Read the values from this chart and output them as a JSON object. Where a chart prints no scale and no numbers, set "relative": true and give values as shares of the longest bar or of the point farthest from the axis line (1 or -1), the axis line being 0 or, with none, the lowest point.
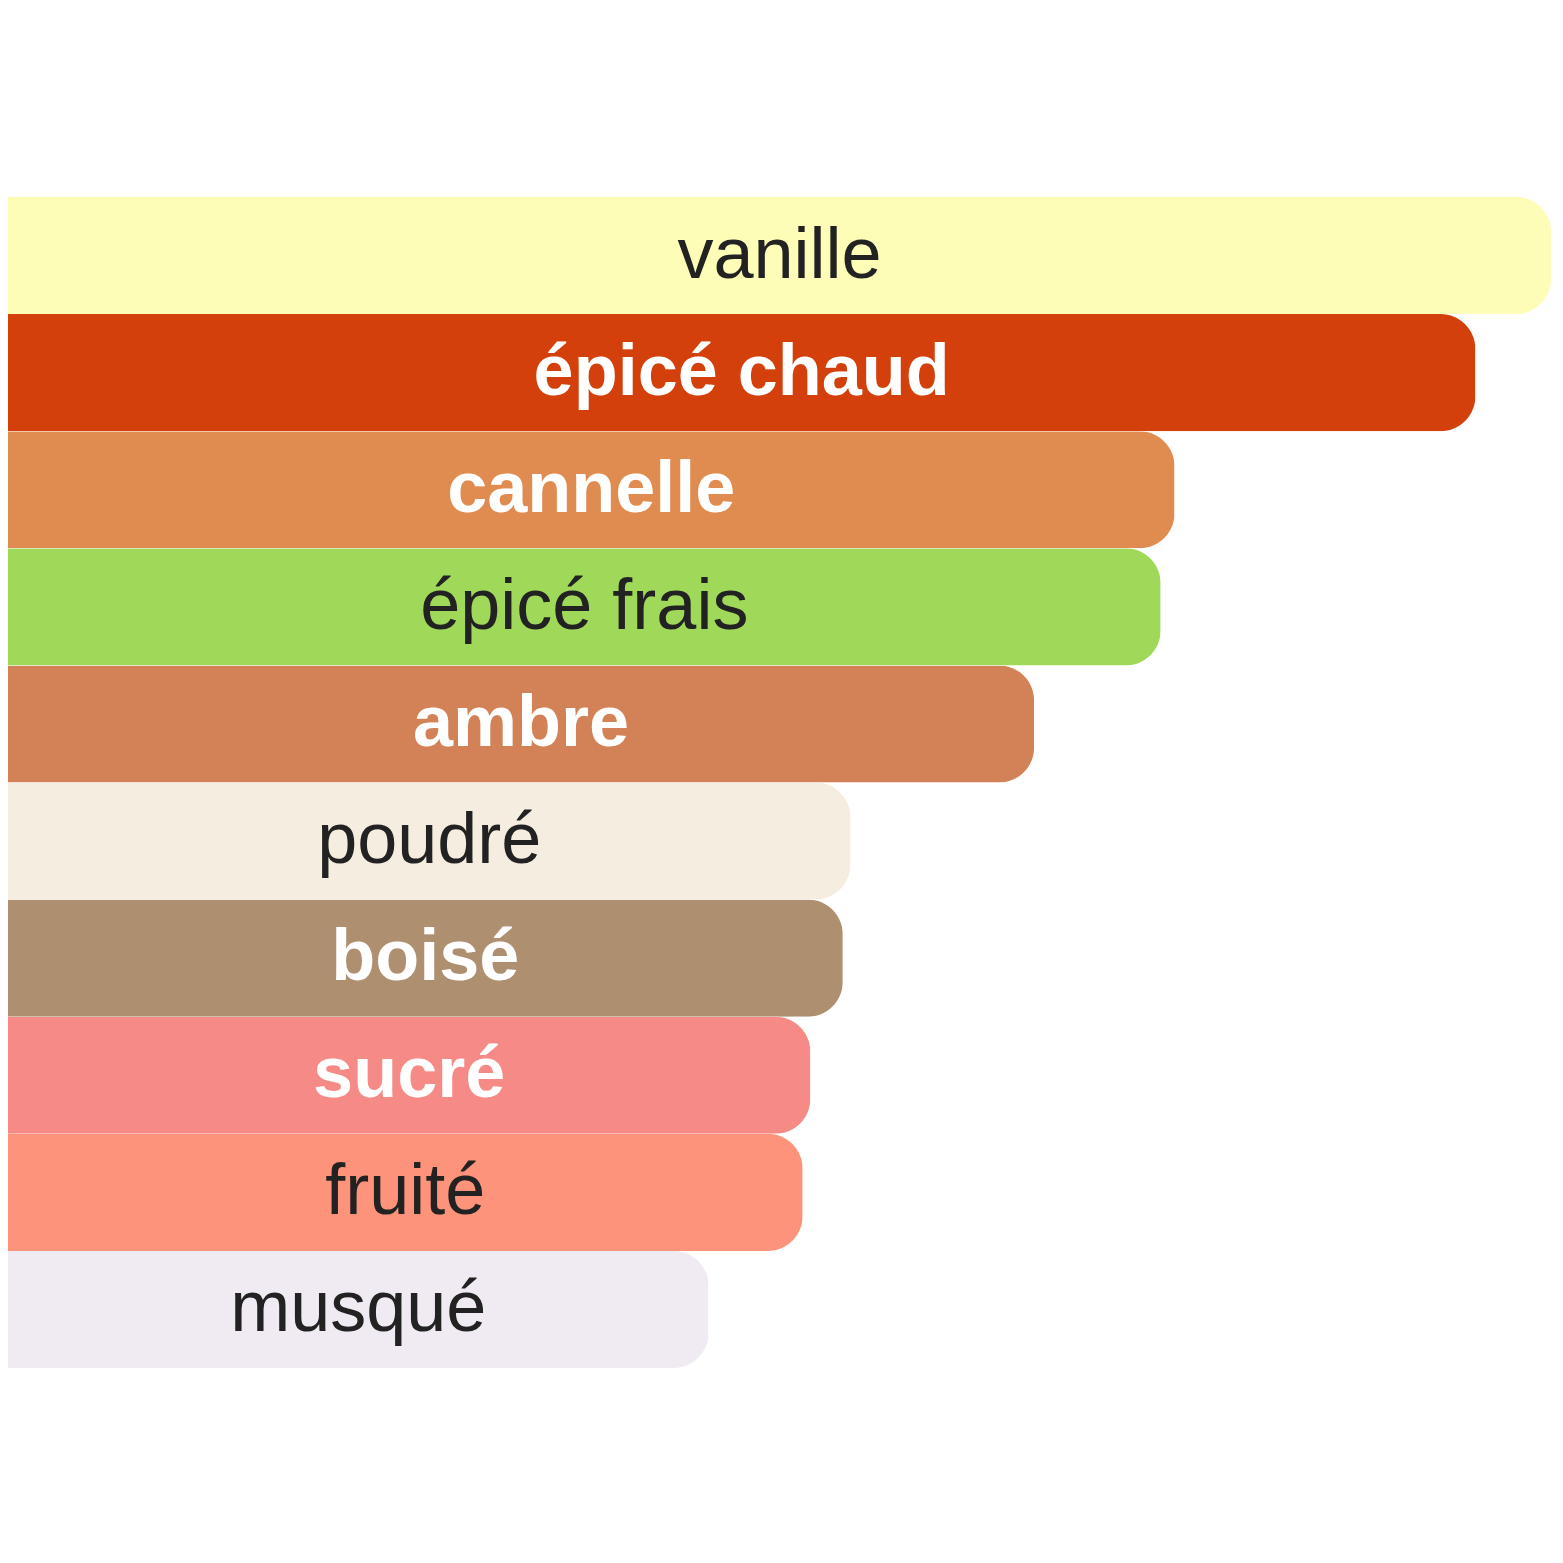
{
  "chart_data": {
    "type": "bar",
    "orientation": "horizontal",
    "relative": true,
    "tick_labels": "y",
    "categories": [
      "vanille",
      "épicé chaud",
      "cannelle",
      "épicé frais",
      "ambre",
      "poudré",
      "boisé",
      "sucré",
      "fruité",
      "musqué"
    ],
    "values": [
      1,
      0.951,
      0.756,
      0.747,
      0.665,
      0.546,
      0.541,
      0.52,
      0.515,
      0.454
    ],
    "colors": [
      "#fdfdb8",
      "#d4400c",
      "#e08c50",
      "#a0d85a",
      "#d38257",
      "#f6ede1",
      "#ae8f70",
      "#f58a87",
      "#fc937a",
      "#f0eaf2"
    ]
  }
}
